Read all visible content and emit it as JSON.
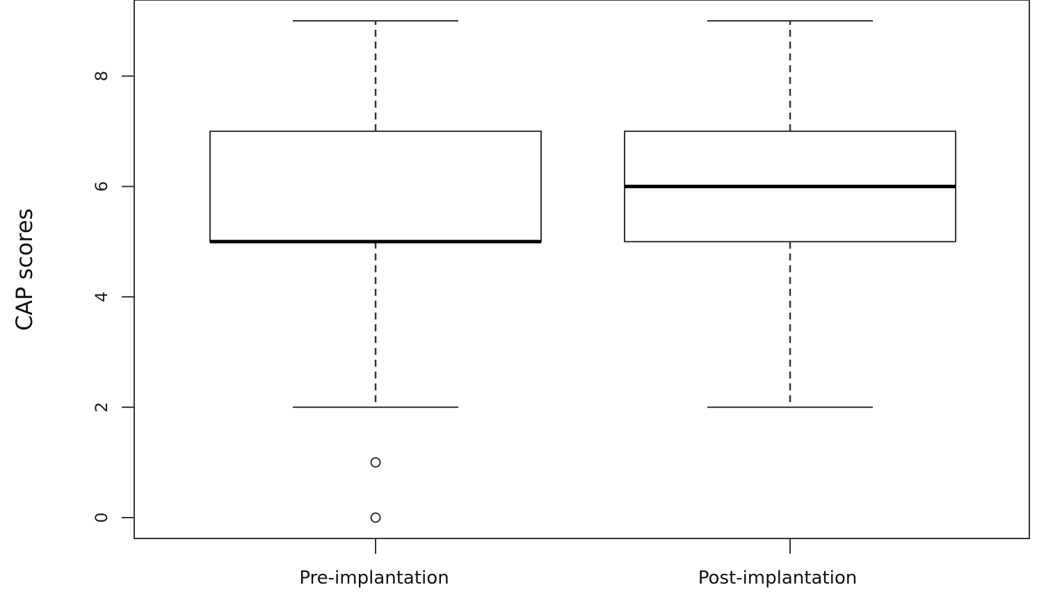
{
  "chart_data": {
    "type": "boxplot",
    "title": "",
    "xlabel": "",
    "ylabel": "CAP scores",
    "ylim": [
      -0.45,
      9.3
    ],
    "yticks": [
      "0",
      "2",
      "4",
      "6",
      "8"
    ],
    "grid": false,
    "legend": "none",
    "categories": [
      "Pre-implantation",
      "Post-implantation"
    ],
    "boxes": [
      {
        "category": "Pre-implantation",
        "whisker_low": 2,
        "q1": 5,
        "median": 5,
        "q3": 7,
        "whisker_high": 9,
        "outliers": [
          1,
          0
        ]
      },
      {
        "category": "Post-implantation",
        "whisker_low": 2,
        "q1": 5,
        "median": 6,
        "q3": 7,
        "whisker_high": 9,
        "outliers": []
      }
    ],
    "colors": {
      "line": "#333333",
      "median": "#000000",
      "box_fill": "#ffffff"
    }
  }
}
